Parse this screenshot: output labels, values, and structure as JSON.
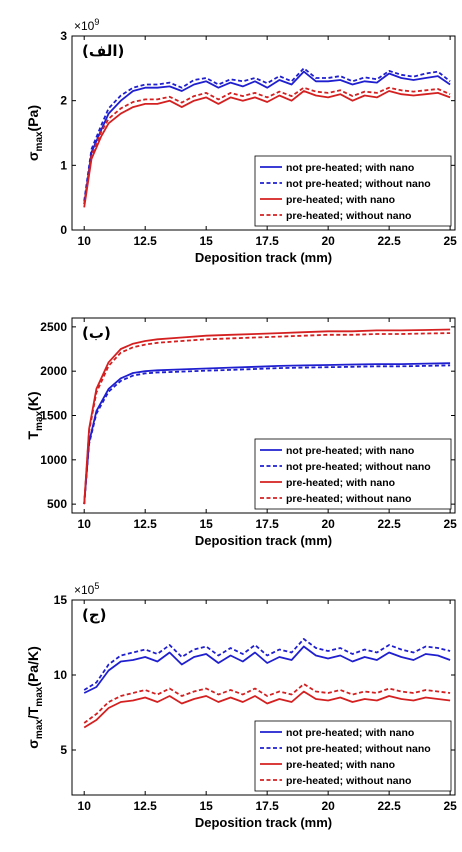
{
  "figure": {
    "colors": {
      "blue": "#1f1fd0",
      "red": "#d42020"
    }
  },
  "chart_data": [
    {
      "type": "line",
      "panel_label": "(الف)",
      "multiplier_base": "×10",
      "multiplier_exp": "9",
      "xlabel": "Deposition track (mm)",
      "ylabel": "σ",
      "ylabel_sub": "max",
      "ylabel_unit": "(Pa)",
      "xlim": [
        9.5,
        25.2
      ],
      "ylim": [
        0,
        3
      ],
      "xticks": [
        10,
        12.5,
        15,
        17.5,
        20,
        22.5,
        25
      ],
      "xtick_labels": [
        "10",
        "12.5",
        "15",
        "17.5",
        "20",
        "22.5",
        "25"
      ],
      "yticks": [
        0,
        1,
        2,
        3
      ],
      "ytick_labels": [
        "0",
        "1",
        "2",
        "3"
      ],
      "legend_position": "lower-right",
      "series": [
        {
          "name": "not pre-heated; with nano",
          "color": "#1f1fd0",
          "dash": "solid",
          "x": [
            10,
            10.3,
            10.7,
            11,
            11.5,
            12,
            12.5,
            13,
            13.5,
            14,
            14.5,
            15,
            15.5,
            16,
            16.5,
            17,
            17.5,
            18,
            18.5,
            19,
            19.5,
            20,
            20.5,
            21,
            21.5,
            22,
            22.5,
            23,
            23.5,
            24,
            24.5,
            25
          ],
          "y": [
            0.4,
            1.2,
            1.55,
            1.8,
            2.0,
            2.15,
            2.2,
            2.2,
            2.22,
            2.15,
            2.25,
            2.3,
            2.2,
            2.28,
            2.22,
            2.3,
            2.2,
            2.32,
            2.25,
            2.45,
            2.3,
            2.3,
            2.32,
            2.25,
            2.3,
            2.28,
            2.42,
            2.35,
            2.32,
            2.35,
            2.38,
            2.25
          ]
        },
        {
          "name": "not pre-heated; without nano",
          "color": "#1f1fd0",
          "dash": "dashed",
          "x": [
            10,
            10.3,
            10.7,
            11,
            11.5,
            12,
            12.5,
            13,
            13.5,
            14,
            14.5,
            15,
            15.5,
            16,
            16.5,
            17,
            17.5,
            18,
            18.5,
            19,
            19.5,
            20,
            20.5,
            21,
            21.5,
            22,
            22.5,
            23,
            23.5,
            24,
            24.5,
            25
          ],
          "y": [
            0.45,
            1.25,
            1.62,
            1.88,
            2.08,
            2.2,
            2.25,
            2.25,
            2.28,
            2.2,
            2.32,
            2.35,
            2.25,
            2.33,
            2.3,
            2.35,
            2.27,
            2.38,
            2.3,
            2.5,
            2.35,
            2.35,
            2.38,
            2.3,
            2.36,
            2.33,
            2.46,
            2.4,
            2.37,
            2.42,
            2.45,
            2.3
          ]
        },
        {
          "name": "pre-heated; with nano",
          "color": "#d42020",
          "dash": "solid",
          "x": [
            10,
            10.3,
            10.7,
            11,
            11.5,
            12,
            12.5,
            13,
            13.5,
            14,
            14.5,
            15,
            15.5,
            16,
            16.5,
            17,
            17.5,
            18,
            18.5,
            19,
            19.5,
            20,
            20.5,
            21,
            21.5,
            22,
            22.5,
            23,
            23.5,
            24,
            24.5,
            25
          ],
          "y": [
            0.35,
            1.1,
            1.45,
            1.65,
            1.8,
            1.9,
            1.95,
            1.95,
            2.0,
            1.9,
            2.0,
            2.05,
            1.95,
            2.05,
            2.0,
            2.05,
            1.98,
            2.08,
            2.0,
            2.15,
            2.08,
            2.05,
            2.1,
            2.0,
            2.08,
            2.05,
            2.15,
            2.1,
            2.08,
            2.1,
            2.12,
            2.05
          ]
        },
        {
          "name": "pre-heated; without nano",
          "color": "#d42020",
          "dash": "dashed",
          "x": [
            10,
            10.3,
            10.7,
            11,
            11.5,
            12,
            12.5,
            13,
            13.5,
            14,
            14.5,
            15,
            15.5,
            16,
            16.5,
            17,
            17.5,
            18,
            18.5,
            19,
            19.5,
            20,
            20.5,
            21,
            21.5,
            22,
            22.5,
            23,
            23.5,
            24,
            24.5,
            25
          ],
          "y": [
            0.4,
            1.15,
            1.52,
            1.72,
            1.88,
            1.98,
            2.02,
            2.02,
            2.06,
            1.97,
            2.07,
            2.12,
            2.02,
            2.12,
            2.07,
            2.12,
            2.05,
            2.14,
            2.07,
            2.2,
            2.14,
            2.12,
            2.16,
            2.07,
            2.14,
            2.12,
            2.2,
            2.16,
            2.14,
            2.16,
            2.18,
            2.1
          ]
        }
      ]
    },
    {
      "type": "line",
      "panel_label": "(ب)",
      "xlabel": "Deposition track (mm)",
      "ylabel": "T",
      "ylabel_sub": "max",
      "ylabel_unit": "(K)",
      "xlim": [
        9.5,
        25.2
      ],
      "ylim": [
        400,
        2600
      ],
      "xticks": [
        10,
        12.5,
        15,
        17.5,
        20,
        22.5,
        25
      ],
      "xtick_labels": [
        "10",
        "12.5",
        "15",
        "17.5",
        "20",
        "22.5",
        "25"
      ],
      "yticks": [
        500,
        1000,
        1500,
        2000,
        2500
      ],
      "ytick_labels": [
        "500",
        "1000",
        "1500",
        "2000",
        "2500"
      ],
      "legend_position": "lower-right",
      "series": [
        {
          "name": "not pre-heated; with nano",
          "color": "#1f1fd0",
          "dash": "solid",
          "x": [
            10,
            10.2,
            10.5,
            11,
            11.5,
            12,
            12.5,
            13,
            14,
            15,
            16,
            17,
            18,
            19,
            20,
            21,
            22,
            23,
            24,
            25
          ],
          "y": [
            500,
            1200,
            1550,
            1800,
            1920,
            1980,
            2000,
            2010,
            2020,
            2030,
            2040,
            2050,
            2060,
            2065,
            2070,
            2075,
            2080,
            2080,
            2085,
            2090
          ]
        },
        {
          "name": "not pre-heated; without nano",
          "color": "#1f1fd0",
          "dash": "dashed",
          "x": [
            10,
            10.2,
            10.5,
            11,
            11.5,
            12,
            12.5,
            13,
            14,
            15,
            16,
            17,
            18,
            19,
            20,
            21,
            22,
            23,
            24,
            25
          ],
          "y": [
            500,
            1180,
            1520,
            1770,
            1890,
            1950,
            1975,
            1985,
            1995,
            2005,
            2015,
            2025,
            2035,
            2040,
            2045,
            2050,
            2055,
            2055,
            2060,
            2065
          ]
        },
        {
          "name": "pre-heated; with nano",
          "color": "#d42020",
          "dash": "solid",
          "x": [
            10,
            10.2,
            10.5,
            11,
            11.5,
            12,
            12.5,
            13,
            14,
            15,
            16,
            17,
            18,
            19,
            20,
            21,
            22,
            23,
            24,
            25
          ],
          "y": [
            500,
            1350,
            1800,
            2100,
            2250,
            2310,
            2340,
            2360,
            2380,
            2400,
            2410,
            2420,
            2430,
            2440,
            2450,
            2450,
            2460,
            2460,
            2465,
            2470
          ]
        },
        {
          "name": "pre-heated; without nano",
          "color": "#d42020",
          "dash": "dashed",
          "x": [
            10,
            10.2,
            10.5,
            11,
            11.5,
            12,
            12.5,
            13,
            14,
            15,
            16,
            17,
            18,
            19,
            20,
            21,
            22,
            23,
            24,
            25
          ],
          "y": [
            500,
            1320,
            1760,
            2060,
            2210,
            2270,
            2300,
            2320,
            2340,
            2360,
            2370,
            2380,
            2390,
            2400,
            2410,
            2410,
            2420,
            2420,
            2425,
            2430
          ]
        }
      ]
    },
    {
      "type": "line",
      "panel_label": "(ج)",
      "multiplier_base": "×10",
      "multiplier_exp": "5",
      "xlabel": "Deposition track (mm)",
      "ylabel": "σ",
      "ylabel_sub": "max",
      "ylabel_mid": "/T",
      "ylabel_sub2": "max",
      "ylabel_unit": "(Pa/K)",
      "xlim": [
        9.5,
        25.2
      ],
      "ylim": [
        2,
        15
      ],
      "xticks": [
        10,
        12.5,
        15,
        17.5,
        20,
        22.5,
        25
      ],
      "xtick_labels": [
        "10",
        "12.5",
        "15",
        "17.5",
        "20",
        "22.5",
        "25"
      ],
      "yticks": [
        5,
        10,
        15
      ],
      "ytick_labels": [
        "5",
        "10",
        "15"
      ],
      "legend_position": "lower-right",
      "series": [
        {
          "name": "not pre-heated; with nano",
          "color": "#1f1fd0",
          "dash": "solid",
          "x": [
            10,
            10.5,
            11,
            11.5,
            12,
            12.5,
            13,
            13.5,
            14,
            14.5,
            15,
            15.5,
            16,
            16.5,
            17,
            17.5,
            18,
            18.5,
            19,
            19.5,
            20,
            20.5,
            21,
            21.5,
            22,
            22.5,
            23,
            23.5,
            24,
            24.5,
            25
          ],
          "y": [
            8.8,
            9.2,
            10.3,
            10.9,
            11.0,
            11.2,
            10.9,
            11.5,
            10.7,
            11.2,
            11.4,
            10.8,
            11.3,
            10.9,
            11.5,
            10.8,
            11.2,
            11.0,
            11.9,
            11.3,
            11.1,
            11.3,
            10.9,
            11.2,
            11.0,
            11.5,
            11.2,
            11.0,
            11.4,
            11.3,
            11.0
          ]
        },
        {
          "name": "not pre-heated; without nano",
          "color": "#1f1fd0",
          "dash": "dashed",
          "x": [
            10,
            10.5,
            11,
            11.5,
            12,
            12.5,
            13,
            13.5,
            14,
            14.5,
            15,
            15.5,
            16,
            16.5,
            17,
            17.5,
            18,
            18.5,
            19,
            19.5,
            20,
            20.5,
            21,
            21.5,
            22,
            22.5,
            23,
            23.5,
            24,
            24.5,
            25
          ],
          "y": [
            9.0,
            9.5,
            10.7,
            11.3,
            11.5,
            11.7,
            11.4,
            12.0,
            11.2,
            11.7,
            11.9,
            11.3,
            11.8,
            11.4,
            12.0,
            11.3,
            11.7,
            11.5,
            12.4,
            11.8,
            11.6,
            11.8,
            11.4,
            11.7,
            11.5,
            12.0,
            11.7,
            11.5,
            11.9,
            11.8,
            11.6
          ]
        },
        {
          "name": "pre-heated; with nano",
          "color": "#d42020",
          "dash": "solid",
          "x": [
            10,
            10.5,
            11,
            11.5,
            12,
            12.5,
            13,
            13.5,
            14,
            14.5,
            15,
            15.5,
            16,
            16.5,
            17,
            17.5,
            18,
            18.5,
            19,
            19.5,
            20,
            20.5,
            21,
            21.5,
            22,
            22.5,
            23,
            23.5,
            24,
            24.5,
            25
          ],
          "y": [
            6.5,
            7.0,
            7.8,
            8.2,
            8.3,
            8.5,
            8.2,
            8.6,
            8.1,
            8.4,
            8.6,
            8.2,
            8.5,
            8.2,
            8.6,
            8.1,
            8.4,
            8.2,
            8.9,
            8.4,
            8.3,
            8.5,
            8.2,
            8.4,
            8.3,
            8.6,
            8.4,
            8.3,
            8.5,
            8.4,
            8.3
          ]
        },
        {
          "name": "pre-heated; without nano",
          "color": "#d42020",
          "dash": "dashed",
          "x": [
            10,
            10.5,
            11,
            11.5,
            12,
            12.5,
            13,
            13.5,
            14,
            14.5,
            15,
            15.5,
            16,
            16.5,
            17,
            17.5,
            18,
            18.5,
            19,
            19.5,
            20,
            20.5,
            21,
            21.5,
            22,
            22.5,
            23,
            23.5,
            24,
            24.5,
            25
          ],
          "y": [
            6.8,
            7.4,
            8.2,
            8.6,
            8.8,
            9.0,
            8.7,
            9.1,
            8.6,
            8.9,
            9.1,
            8.7,
            9.0,
            8.7,
            9.1,
            8.6,
            8.9,
            8.7,
            9.4,
            8.9,
            8.8,
            9.0,
            8.7,
            8.9,
            8.8,
            9.1,
            8.9,
            8.8,
            9.0,
            8.9,
            8.8
          ]
        }
      ]
    }
  ]
}
